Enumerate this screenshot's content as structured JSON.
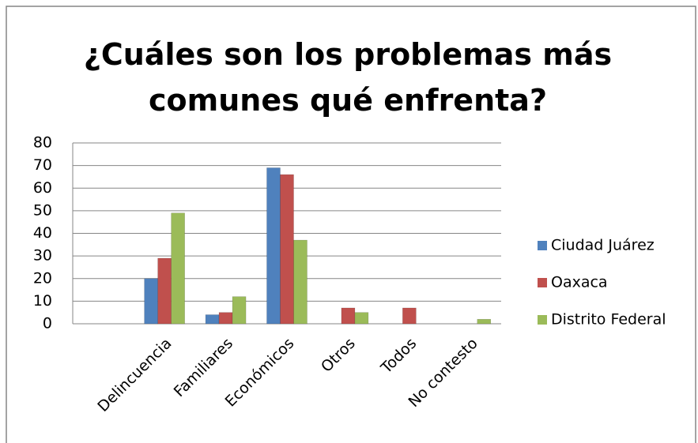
{
  "chart_data": {
    "type": "bar",
    "title": "¿Cuáles son los problemas más comunes qué enfrenta?",
    "categories": [
      null,
      "Delincuencia",
      "Familiares",
      "Económicos",
      "Otros",
      "Todos",
      "No contesto"
    ],
    "series": [
      {
        "name": "Ciudad Juárez",
        "color": "#4f81bd",
        "values": [
          null,
          20,
          4,
          69,
          0,
          0,
          0
        ]
      },
      {
        "name": "Oaxaca",
        "color": "#c0504d",
        "values": [
          null,
          29,
          5,
          66,
          7,
          7,
          0
        ]
      },
      {
        "name": "Distrito Federal",
        "color": "#9bbb59",
        "values": [
          null,
          49,
          12,
          37,
          5,
          0,
          2
        ]
      }
    ],
    "ylim": [
      0,
      80
    ],
    "yticks": [
      0,
      10,
      20,
      30,
      40,
      50,
      60,
      70,
      80
    ],
    "grid": true,
    "legend": "right"
  }
}
